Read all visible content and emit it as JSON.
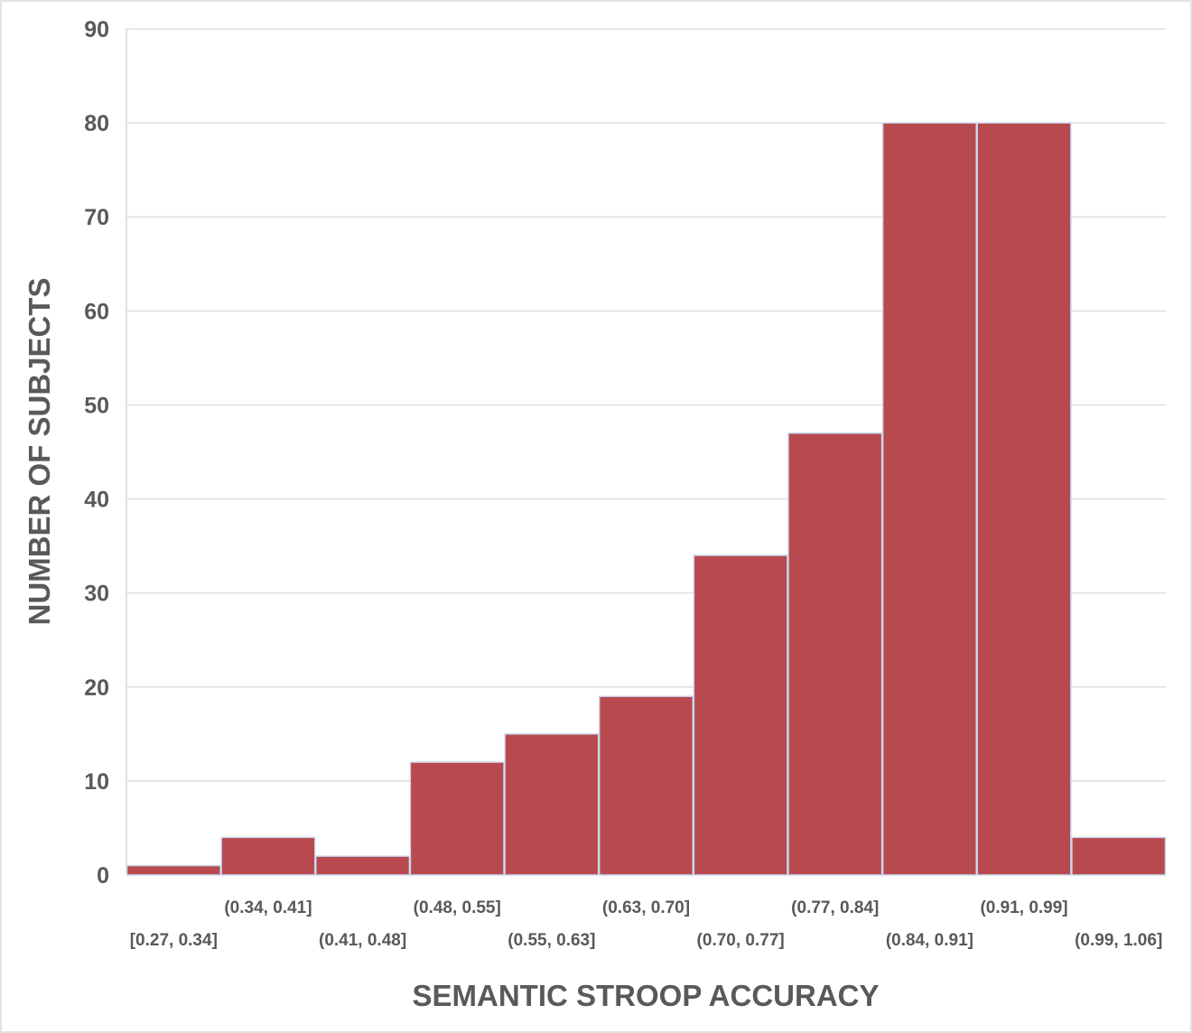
{
  "chart_data": {
    "type": "bar",
    "title": "",
    "xlabel": "SEMANTIC STROOP ACCURACY",
    "ylabel": "NUMBER OF SUBJECTS",
    "categories": [
      "[0.27, 0.34]",
      "(0.34, 0.41]",
      "(0.41, 0.48]",
      "(0.48, 0.55]",
      "(0.55, 0.63]",
      "(0.63, 0.70]",
      "(0.70, 0.77]",
      "(0.77, 0.84]",
      "(0.84, 0.91]",
      "(0.91, 0.99]",
      "(0.99, 1.06]"
    ],
    "values": [
      1,
      4,
      2,
      12,
      15,
      19,
      34,
      47,
      80,
      80,
      4
    ],
    "ylim": [
      0,
      90
    ],
    "yticks": [
      0,
      10,
      20,
      30,
      40,
      50,
      60,
      70,
      80,
      90
    ],
    "grid": true,
    "legend": "none",
    "bar_color": "#b84a4f",
    "bar_edge_color": "#c9d9ee"
  }
}
